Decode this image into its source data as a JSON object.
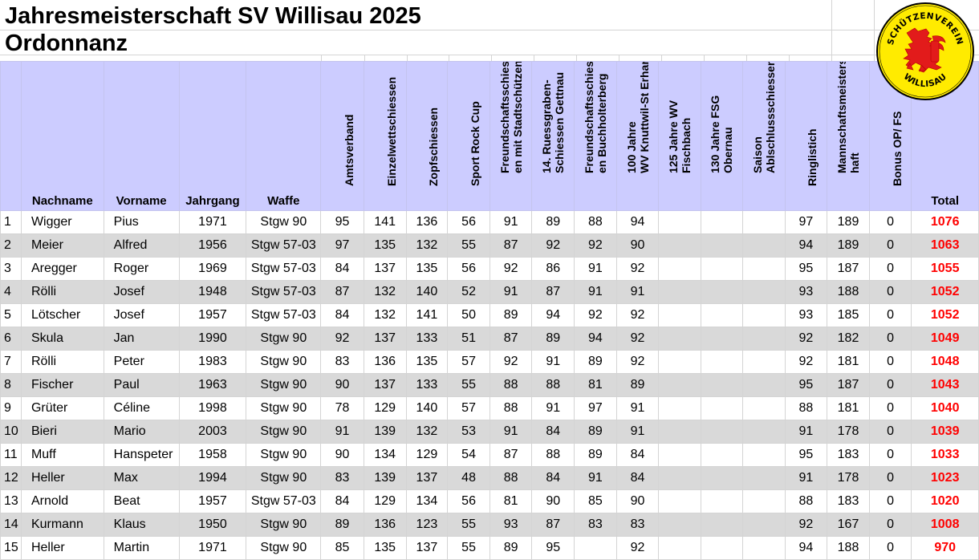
{
  "title": "Jahresmeisterschaft SV Willisau 2025",
  "subtitle": "Ordonnanz",
  "logo": {
    "text_top": "SCHÜTZENVEREIN",
    "text_bottom": "WILLISAU",
    "colors": {
      "ring": "#ffffff",
      "fill": "#ffeb00",
      "lion": "#e21b1b",
      "text": "#000000"
    }
  },
  "colors": {
    "header_bg": "#ccccff",
    "stripe_bg": "#d9d9d9",
    "total_text": "#ff0000"
  },
  "columns": {
    "nachname": "Nachname",
    "vorname": "Vorname",
    "jahrgang": "Jahrgang",
    "waffe": "Waffe",
    "amtsverband": "Amtsverband",
    "einzelwett": "Einzelwettschiessen",
    "zopf": "Zopfschiessen",
    "sportrock": "Sport Rock Cup",
    "freund_stadt_1": "Freundschaftsschiess",
    "freund_stadt_2": "en mit  Stadtschützen",
    "ruess_1": "14. Ruessgraben-",
    "ruess_2": "Schiessen Gettnau",
    "freund_buch_1": "Freundschaftsschiess",
    "freund_buch_2": "en Buchholterberg",
    "hundert_1": "100 Jahre",
    "hundert_2": "WV Knuttwil-St Erhard",
    "h125_1": "125 Jahre WV",
    "h125_2": "Fischbach",
    "h130_1": "130 Jahre FSG",
    "h130_2": "Obernau",
    "saison_1": "Saison",
    "saison_2": "Ablschlussschiessen",
    "ringlistich": "Ringlistich",
    "mann_1": "Mannschaftsmeistersc",
    "mann_2": "haft",
    "bonus": "Bonus OP/ FS",
    "total": "Total"
  },
  "rows": [
    [
      "1",
      "Wigger",
      "Pius",
      "1971",
      "Stgw 90",
      "95",
      "141",
      "136",
      "56",
      "91",
      "89",
      "88",
      "94",
      "",
      "",
      "",
      "97",
      "189",
      "0",
      "1076"
    ],
    [
      "2",
      "Meier",
      "Alfred",
      "1956",
      "Stgw 57-03",
      "97",
      "135",
      "132",
      "55",
      "87",
      "92",
      "92",
      "90",
      "",
      "",
      "",
      "94",
      "189",
      "0",
      "1063"
    ],
    [
      "3",
      "Aregger",
      "Roger",
      "1969",
      "Stgw 57-03",
      "84",
      "137",
      "135",
      "56",
      "92",
      "86",
      "91",
      "92",
      "",
      "",
      "",
      "95",
      "187",
      "0",
      "1055"
    ],
    [
      "4",
      "Rölli",
      "Josef",
      "1948",
      "Stgw 57-03",
      "87",
      "132",
      "140",
      "52",
      "91",
      "87",
      "91",
      "91",
      "",
      "",
      "",
      "93",
      "188",
      "0",
      "1052"
    ],
    [
      "5",
      "Lötscher",
      "Josef",
      "1957",
      "Stgw 57-03",
      "84",
      "132",
      "141",
      "50",
      "89",
      "94",
      "92",
      "92",
      "",
      "",
      "",
      "93",
      "185",
      "0",
      "1052"
    ],
    [
      "6",
      "Skula",
      "Jan",
      "1990",
      "Stgw 90",
      "92",
      "137",
      "133",
      "51",
      "87",
      "89",
      "94",
      "92",
      "",
      "",
      "",
      "92",
      "182",
      "0",
      "1049"
    ],
    [
      "7",
      "Rölli",
      "Peter",
      "1983",
      "Stgw 90",
      "83",
      "136",
      "135",
      "57",
      "92",
      "91",
      "89",
      "92",
      "",
      "",
      "",
      "92",
      "181",
      "0",
      "1048"
    ],
    [
      "8",
      "Fischer",
      "Paul",
      "1963",
      "Stgw 90",
      "90",
      "137",
      "133",
      "55",
      "88",
      "88",
      "81",
      "89",
      "",
      "",
      "",
      "95",
      "187",
      "0",
      "1043"
    ],
    [
      "9",
      "Grüter",
      "Céline",
      "1998",
      "Stgw 90",
      "78",
      "129",
      "140",
      "57",
      "88",
      "91",
      "97",
      "91",
      "",
      "",
      "",
      "88",
      "181",
      "0",
      "1040"
    ],
    [
      "10",
      "Bieri",
      "Mario",
      "2003",
      "Stgw 90",
      "91",
      "139",
      "132",
      "53",
      "91",
      "84",
      "89",
      "91",
      "",
      "",
      "",
      "91",
      "178",
      "0",
      "1039"
    ],
    [
      "11",
      "Muff",
      "Hanspeter",
      "1958",
      "Stgw 90",
      "90",
      "134",
      "129",
      "54",
      "87",
      "88",
      "89",
      "84",
      "",
      "",
      "",
      "95",
      "183",
      "0",
      "1033"
    ],
    [
      "12",
      "Heller",
      "Max",
      "1994",
      "Stgw 90",
      "83",
      "139",
      "137",
      "48",
      "88",
      "84",
      "91",
      "84",
      "",
      "",
      "",
      "91",
      "178",
      "0",
      "1023"
    ],
    [
      "13",
      "Arnold",
      "Beat",
      "1957",
      "Stgw 57-03",
      "84",
      "129",
      "134",
      "56",
      "81",
      "90",
      "85",
      "90",
      "",
      "",
      "",
      "88",
      "183",
      "0",
      "1020"
    ],
    [
      "14",
      "Kurmann",
      "Klaus",
      "1950",
      "Stgw 90",
      "89",
      "136",
      "123",
      "55",
      "93",
      "87",
      "83",
      "83",
      "",
      "",
      "",
      "92",
      "167",
      "0",
      "1008"
    ],
    [
      "15",
      "Heller",
      "Martin",
      "1971",
      "Stgw 90",
      "85",
      "135",
      "137",
      "55",
      "89",
      "95",
      "",
      "92",
      "",
      "",
      "",
      "94",
      "188",
      "0",
      "970"
    ]
  ]
}
